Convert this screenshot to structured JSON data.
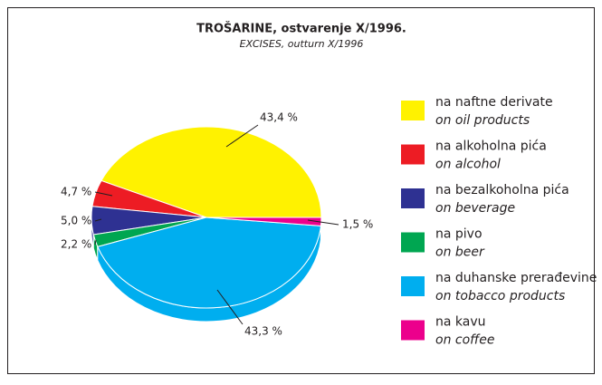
{
  "chart_data": {
    "type": "pie",
    "title": "TROŠARINE, ostvarenje X/1996.",
    "subtitle": "EXCISES, outturn X/1996",
    "categories": [
      "na naftne derivate",
      "na alkoholna pića",
      "na bezalkoholna pića",
      "na pivo",
      "na duhanske prerađevine",
      "na kavu"
    ],
    "categories_en": [
      "on oil products",
      "on alcohol",
      "on beverage",
      "on beer",
      "on tobacco products",
      "on coffee"
    ],
    "values": [
      43.4,
      4.7,
      5.0,
      2.2,
      43.3,
      1.5
    ],
    "value_labels": [
      "43,4 %",
      "4,7 %",
      "5,0 %",
      "2,2 %",
      "43,3 %",
      "1,5 %"
    ],
    "colors": [
      "#fff200",
      "#ed1c24",
      "#2e3192",
      "#00a651",
      "#00aeef",
      "#ec008c"
    ]
  }
}
